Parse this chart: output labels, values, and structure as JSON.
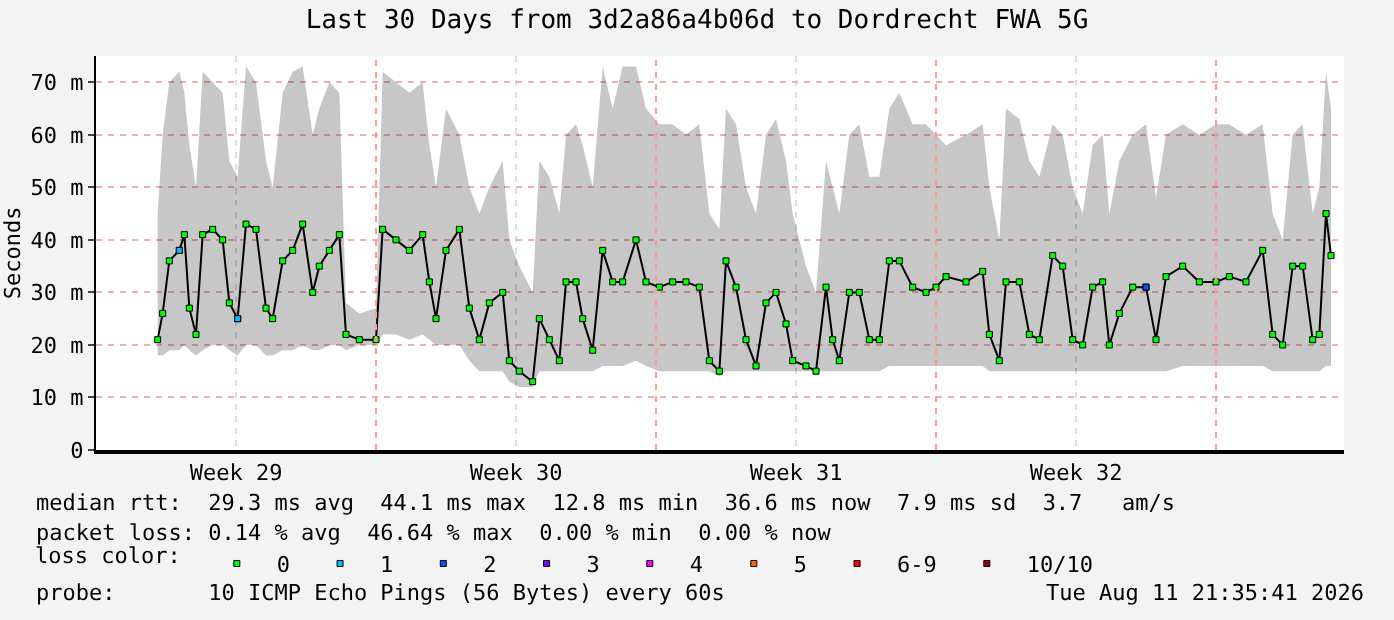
{
  "chart_data": {
    "type": "line",
    "title": "Last 30 Days from 3d2a86a4b06d to Dordrecht FWA 5G",
    "ylabel": "Seconds",
    "x": [
      "2026-07-13T13:00",
      "2026-07-13T16:00",
      "2026-07-13T20:00",
      "2026-07-14T02:00",
      "2026-07-14T05:00",
      "2026-07-14T08:00",
      "2026-07-14T12:00",
      "2026-07-14T16:00",
      "2026-07-14T22:00",
      "2026-07-15T04:00",
      "2026-07-15T08:00",
      "2026-07-15T13:00",
      "2026-07-15T18:00",
      "2026-07-16T00:00",
      "2026-07-16T06:00",
      "2026-07-16T10:00",
      "2026-07-16T16:00",
      "2026-07-16T22:00",
      "2026-07-17T04:00",
      "2026-07-17T10:00",
      "2026-07-17T14:00",
      "2026-07-17T20:00",
      "2026-07-18T02:00",
      "2026-07-18T06:00",
      "2026-07-18T14:00",
      "2026-07-19T00:00",
      "2026-07-19T04:00",
      "2026-07-19T12:00",
      "2026-07-19T20:00",
      "2026-07-20T04:00",
      "2026-07-20T08:00",
      "2026-07-20T12:00",
      "2026-07-20T18:00",
      "2026-07-21T02:00",
      "2026-07-21T08:00",
      "2026-07-21T14:00",
      "2026-07-21T20:00",
      "2026-07-22T04:00",
      "2026-07-22T08:00",
      "2026-07-22T14:00",
      "2026-07-22T22:00",
      "2026-07-23T02:00",
      "2026-07-23T08:00",
      "2026-07-23T14:00",
      "2026-07-23T18:00",
      "2026-07-24T00:00",
      "2026-07-24T04:00",
      "2026-07-24T10:00",
      "2026-07-24T16:00",
      "2026-07-24T22:00",
      "2026-07-25T04:00",
      "2026-07-25T12:00",
      "2026-07-25T18:00",
      "2026-07-26T02:00",
      "2026-07-26T10:00",
      "2026-07-26T18:00",
      "2026-07-27T02:00",
      "2026-07-27T08:00",
      "2026-07-27T14:00",
      "2026-07-27T18:00",
      "2026-07-28T00:00",
      "2026-07-28T06:00",
      "2026-07-28T12:00",
      "2026-07-28T18:00",
      "2026-07-29T00:00",
      "2026-07-29T06:00",
      "2026-07-29T10:00",
      "2026-07-29T18:00",
      "2026-07-30T00:00",
      "2026-07-30T06:00",
      "2026-07-30T10:00",
      "2026-07-30T14:00",
      "2026-07-30T20:00",
      "2026-07-31T02:00",
      "2026-07-31T08:00",
      "2026-07-31T14:00",
      "2026-07-31T20:00",
      "2026-08-01T02:00",
      "2026-08-01T10:00",
      "2026-08-01T18:00",
      "2026-08-02T00:00",
      "2026-08-02T06:00",
      "2026-08-02T18:00",
      "2026-08-03T04:00",
      "2026-08-03T08:00",
      "2026-08-03T14:00",
      "2026-08-03T18:00",
      "2026-08-04T02:00",
      "2026-08-04T08:00",
      "2026-08-04T14:00",
      "2026-08-04T22:00",
      "2026-08-05T04:00",
      "2026-08-05T10:00",
      "2026-08-05T16:00",
      "2026-08-05T22:00",
      "2026-08-06T04:00",
      "2026-08-06T08:00",
      "2026-08-06T14:00",
      "2026-08-06T22:00",
      "2026-08-07T06:00",
      "2026-08-07T12:00",
      "2026-08-07T18:00",
      "2026-08-08T04:00",
      "2026-08-08T14:00",
      "2026-08-09T00:00",
      "2026-08-09T08:00",
      "2026-08-09T18:00",
      "2026-08-10T04:00",
      "2026-08-10T10:00",
      "2026-08-10T16:00",
      "2026-08-10T22:00",
      "2026-08-11T04:00",
      "2026-08-11T10:00",
      "2026-08-11T14:00",
      "2026-08-11T18:00",
      "2026-08-11T21:00"
    ],
    "series": [
      {
        "color": "#000000",
        "marker": "none",
        "values": [
          21,
          26,
          36,
          38,
          41,
          27,
          22,
          41,
          42,
          40,
          28,
          25,
          43,
          42,
          27,
          25,
          36,
          38,
          43,
          30,
          35,
          38,
          41,
          22,
          21,
          21,
          42,
          40,
          38,
          41,
          32,
          25,
          38,
          42,
          27,
          21,
          28,
          30,
          17,
          15,
          13,
          25,
          21,
          17,
          32,
          32,
          25,
          19,
          38,
          32,
          32,
          40,
          32,
          31,
          32,
          32,
          31,
          17,
          15,
          36,
          31,
          21,
          16,
          28,
          30,
          24,
          17,
          16,
          15,
          31,
          21,
          17,
          30,
          30,
          21,
          21,
          36,
          36,
          31,
          30,
          31,
          33,
          32,
          34,
          22,
          17,
          32,
          32,
          22,
          21,
          37,
          35,
          21,
          20,
          31,
          32,
          20,
          26,
          31,
          31,
          21,
          33,
          35,
          32,
          32,
          33,
          32,
          38,
          22,
          20,
          35,
          35,
          21,
          22,
          45,
          37
        ],
        "lower": [
          18,
          18,
          19,
          19,
          20,
          19,
          18,
          19,
          20,
          20,
          19,
          18,
          20,
          20,
          18,
          18,
          19,
          19,
          20,
          19,
          19,
          20,
          20,
          19,
          20,
          20,
          22,
          22,
          21,
          22,
          21,
          20,
          20,
          20,
          17,
          15,
          15,
          15,
          13,
          12,
          12,
          15,
          15,
          15,
          15,
          15,
          15,
          15,
          16,
          16,
          16,
          17,
          16,
          15,
          15,
          15,
          15,
          15,
          14,
          15,
          15,
          15,
          15,
          15,
          15,
          15,
          15,
          15,
          15,
          15,
          15,
          15,
          15,
          15,
          15,
          15,
          16,
          16,
          16,
          16,
          16,
          16,
          16,
          16,
          15,
          15,
          15,
          15,
          15,
          15,
          15,
          15,
          15,
          15,
          15,
          15,
          15,
          15,
          15,
          15,
          15,
          15,
          16,
          16,
          16,
          16,
          16,
          16,
          15,
          15,
          15,
          15,
          15,
          15,
          16,
          16
        ],
        "upper": [
          45,
          60,
          70,
          72,
          68,
          58,
          50,
          72,
          70,
          68,
          55,
          52,
          73,
          70,
          55,
          50,
          68,
          72,
          73,
          60,
          65,
          70,
          68,
          28,
          26,
          27,
          72,
          70,
          68,
          70,
          58,
          50,
          65,
          60,
          50,
          45,
          50,
          55,
          40,
          35,
          30,
          55,
          52,
          45,
          60,
          62,
          58,
          50,
          73,
          65,
          73,
          73,
          65,
          62,
          62,
          60,
          62,
          45,
          42,
          65,
          62,
          50,
          45,
          60,
          63,
          55,
          45,
          35,
          30,
          55,
          50,
          45,
          60,
          62,
          52,
          52,
          65,
          68,
          62,
          62,
          60,
          58,
          60,
          62,
          50,
          40,
          65,
          63,
          55,
          52,
          62,
          60,
          50,
          45,
          58,
          60,
          45,
          55,
          60,
          62,
          48,
          60,
          62,
          60,
          62,
          62,
          60,
          62,
          45,
          40,
          60,
          62,
          45,
          50,
          72,
          65
        ]
      },
      {
        "type": "scatter",
        "name": "0",
        "color": "#00ff00",
        "values": [
          21,
          26,
          36,
          38,
          41,
          27,
          22,
          41,
          42,
          40,
          28,
          25,
          43,
          42,
          27,
          25,
          36,
          38,
          43,
          30,
          35,
          38,
          41,
          22,
          21,
          21,
          42,
          40,
          38,
          41,
          32,
          25,
          38,
          42,
          27,
          21,
          28,
          30,
          17,
          15,
          13,
          25,
          21,
          17,
          32,
          32,
          25,
          19,
          38,
          32,
          32,
          40,
          32,
          31,
          32,
          32,
          31,
          17,
          15,
          36,
          31,
          21,
          16,
          28,
          30,
          24,
          17,
          16,
          15,
          31,
          21,
          17,
          30,
          30,
          21,
          21,
          36,
          36,
          31,
          30,
          31,
          33,
          32,
          34,
          22,
          17,
          32,
          32,
          22,
          21,
          37,
          35,
          21,
          20,
          31,
          32,
          20,
          26,
          31,
          31,
          21,
          33,
          35,
          32,
          32,
          33,
          32,
          38,
          22,
          20,
          35,
          35,
          21,
          22,
          45,
          37
        ]
      },
      {
        "type": "scatter",
        "name": "1",
        "color": "#00bbff",
        "values": [
          null,
          null,
          null,
          38,
          null,
          null,
          null,
          null,
          null,
          null,
          null,
          25,
          null,
          null,
          null,
          null,
          null,
          null,
          null,
          null,
          null,
          null,
          null,
          null,
          null,
          null,
          null,
          null,
          null,
          null,
          null,
          null,
          null,
          null,
          null,
          null,
          null,
          null,
          null,
          null,
          null,
          null,
          null,
          null,
          null,
          null,
          null,
          null,
          null,
          null,
          null,
          null,
          null,
          null,
          null,
          null,
          null,
          null,
          null,
          null,
          null,
          null,
          null,
          null,
          null,
          null,
          null,
          null,
          null,
          null,
          null,
          null,
          null,
          null,
          null,
          null,
          null,
          null,
          null,
          null,
          null,
          null,
          null,
          null,
          null,
          null,
          null,
          null,
          null,
          null,
          null,
          null,
          null,
          null,
          null,
          null,
          null,
          null,
          null,
          null,
          null,
          null,
          null,
          null,
          null,
          null,
          null,
          null,
          null,
          null,
          null,
          null,
          null,
          null,
          null,
          null
        ]
      },
      {
        "type": "scatter",
        "name": "2",
        "color": "#0055ff",
        "values": [
          null,
          null,
          null,
          null,
          null,
          null,
          null,
          null,
          null,
          null,
          null,
          null,
          null,
          null,
          null,
          null,
          null,
          null,
          null,
          null,
          null,
          null,
          null,
          null,
          null,
          null,
          null,
          null,
          null,
          null,
          null,
          null,
          null,
          null,
          null,
          null,
          null,
          null,
          null,
          null,
          null,
          null,
          null,
          null,
          null,
          null,
          null,
          null,
          null,
          null,
          null,
          null,
          null,
          null,
          null,
          null,
          null,
          null,
          null,
          null,
          null,
          null,
          null,
          null,
          null,
          null,
          null,
          null,
          null,
          null,
          null,
          null,
          null,
          null,
          null,
          null,
          null,
          null,
          null,
          null,
          null,
          null,
          null,
          null,
          null,
          null,
          null,
          null,
          null,
          null,
          null,
          null,
          null,
          null,
          null,
          null,
          null,
          null,
          null,
          31,
          null,
          null,
          null,
          null,
          null,
          null,
          null,
          null,
          null,
          null,
          null,
          null,
          null,
          null,
          null,
          null
        ]
      },
      {
        "type": "scatter",
        "name": "3",
        "color": "#8800ff",
        "values": [
          null,
          null,
          null,
          null,
          null,
          null,
          null,
          null,
          null,
          null,
          null,
          null,
          null,
          null,
          null,
          null,
          null,
          null,
          null,
          null,
          null,
          null,
          null,
          null,
          null,
          null,
          null,
          null,
          null,
          null,
          null,
          null,
          null,
          null,
          null,
          null,
          null,
          null,
          null,
          null,
          null,
          null,
          null,
          null,
          null,
          null,
          null,
          null,
          null,
          null,
          null,
          null,
          null,
          null,
          null,
          null,
          null,
          null,
          null,
          null,
          null,
          null,
          null,
          null,
          null,
          null,
          null,
          null,
          null,
          null,
          null,
          null,
          null,
          null,
          null,
          null,
          null,
          null,
          null,
          null,
          null,
          null,
          null,
          null,
          null,
          null,
          null,
          null,
          null,
          null,
          null,
          null,
          null,
          null,
          null,
          null,
          null,
          null,
          null,
          null,
          null,
          null,
          null,
          null,
          null,
          null,
          null,
          null,
          null,
          null,
          null,
          null,
          null,
          null,
          null,
          null
        ]
      },
      {
        "type": "scatter",
        "name": "4",
        "color": "#ff00ff",
        "values": [
          null,
          null,
          null,
          null,
          null,
          null,
          null,
          null,
          null,
          null,
          null,
          null,
          null,
          null,
          null,
          null,
          null,
          null,
          null,
          null,
          null,
          null,
          null,
          null,
          null,
          null,
          null,
          null,
          null,
          null,
          null,
          null,
          null,
          null,
          null,
          null,
          null,
          null,
          null,
          null,
          null,
          null,
          null,
          null,
          null,
          null,
          null,
          null,
          null,
          null,
          null,
          null,
          null,
          null,
          null,
          null,
          null,
          null,
          null,
          null,
          null,
          null,
          null,
          null,
          null,
          null,
          null,
          null,
          null,
          null,
          null,
          null,
          null,
          null,
          null,
          null,
          null,
          null,
          null,
          null,
          null,
          null,
          null,
          null,
          null,
          null,
          null,
          null,
          null,
          null,
          null,
          null,
          null,
          null,
          null,
          null,
          null,
          null,
          null,
          null,
          null,
          null,
          null,
          null,
          null,
          null,
          null,
          null,
          null,
          null,
          null,
          null,
          null,
          null,
          null,
          null
        ]
      },
      {
        "type": "scatter",
        "name": "5",
        "color": "#ff6600",
        "values": [
          null,
          null,
          null,
          null,
          null,
          null,
          null,
          null,
          null,
          null,
          null,
          null,
          null,
          null,
          null,
          null,
          null,
          null,
          null,
          null,
          null,
          null,
          null,
          null,
          null,
          null,
          null,
          null,
          null,
          null,
          null,
          null,
          null,
          null,
          null,
          null,
          null,
          null,
          null,
          null,
          null,
          null,
          null,
          null,
          null,
          null,
          null,
          null,
          null,
          null,
          null,
          null,
          null,
          null,
          null,
          null,
          null,
          null,
          null,
          null,
          null,
          null,
          null,
          null,
          null,
          null,
          null,
          null,
          null,
          null,
          null,
          null,
          null,
          null,
          null,
          null,
          null,
          null,
          null,
          null,
          null,
          null,
          null,
          null,
          null,
          null,
          null,
          null,
          null,
          null,
          null,
          null,
          null,
          null,
          null,
          null,
          null,
          null,
          null,
          null,
          null,
          null,
          null,
          null,
          null,
          null,
          null,
          null,
          null,
          null,
          null,
          null,
          null,
          null,
          null,
          null
        ]
      },
      {
        "type": "scatter",
        "name": "6-9",
        "color": "#ff0000",
        "values": [
          null,
          null,
          null,
          null,
          null,
          null,
          null,
          null,
          null,
          null,
          null,
          null,
          null,
          null,
          null,
          null,
          null,
          null,
          null,
          null,
          null,
          null,
          null,
          null,
          null,
          null,
          null,
          null,
          null,
          null,
          null,
          null,
          null,
          null,
          null,
          null,
          null,
          null,
          null,
          null,
          null,
          null,
          null,
          null,
          null,
          null,
          null,
          null,
          null,
          null,
          null,
          null,
          null,
          null,
          null,
          null,
          null,
          null,
          null,
          null,
          null,
          null,
          null,
          null,
          null,
          null,
          null,
          null,
          null,
          null,
          null,
          null,
          null,
          null,
          null,
          null,
          null,
          null,
          null,
          null,
          null,
          null,
          null,
          null,
          null,
          null,
          null,
          null,
          null,
          null,
          null,
          null,
          null,
          null,
          null,
          null,
          null,
          null,
          null,
          null,
          null,
          null,
          null,
          null,
          null,
          null,
          null,
          null,
          null,
          null,
          null,
          null,
          null,
          null,
          null,
          null
        ]
      },
      {
        "type": "scatter",
        "name": "10/10",
        "color": "#a00000",
        "values": [
          null,
          null,
          null,
          null,
          null,
          null,
          null,
          null,
          null,
          null,
          null,
          null,
          null,
          null,
          null,
          null,
          null,
          null,
          null,
          null,
          null,
          null,
          null,
          null,
          null,
          null,
          null,
          null,
          null,
          null,
          null,
          null,
          null,
          null,
          null,
          null,
          null,
          null,
          null,
          null,
          null,
          null,
          null,
          null,
          null,
          null,
          null,
          null,
          null,
          null,
          null,
          null,
          null,
          null,
          null,
          null,
          null,
          null,
          null,
          null,
          null,
          null,
          null,
          null,
          null,
          null,
          null,
          null,
          null,
          null,
          null,
          null,
          null,
          null,
          null,
          null,
          null,
          null,
          null,
          null,
          null,
          null,
          null,
          null,
          null,
          null,
          null,
          null,
          null,
          null,
          null,
          null,
          null,
          null,
          null,
          null,
          null,
          null,
          null,
          null,
          null,
          null,
          null,
          null,
          null,
          null,
          null,
          null,
          null,
          null,
          null,
          null,
          null,
          null,
          null,
          null
        ]
      }
    ],
    "legend_title": "loss color:",
    "legend": "bottom",
    "marker": "square",
    "line_style": "solid",
    "grid": true,
    "xlim": [
      "2026-07-12T00:00",
      "2026-08-12T04:48"
    ],
    "xticks": [
      {
        "value": "2026-07-15T12:00",
        "label": "Week 29"
      },
      {
        "value": "2026-07-22T12:00",
        "label": "Week 30"
      },
      {
        "value": "2026-07-29T12:00",
        "label": "Week 31"
      },
      {
        "value": "2026-08-05T12:00",
        "label": "Week 32"
      }
    ],
    "ylim": [
      0,
      75
    ],
    "yticks": [
      0,
      {
        "value": 10,
        "label": "10 m"
      },
      {
        "value": 20,
        "label": "20 m"
      },
      {
        "value": 30,
        "label": "30 m"
      },
      {
        "value": 40,
        "label": "40 m"
      },
      {
        "value": 50,
        "label": "50 m"
      },
      {
        "value": 60,
        "label": "60 m"
      },
      {
        "value": 70,
        "label": "70 m"
      }
    ],
    "ref_lines": [
      {
        "axis": "x",
        "value": "2026-07-19T00:00",
        "color": "#ff9999",
        "line_style": "dotted"
      },
      {
        "axis": "x",
        "value": "2026-07-26T00:00",
        "color": "#ff9999",
        "line_style": "dotted"
      },
      {
        "axis": "x",
        "value": "2026-08-02T00:00",
        "color": "#ff9999",
        "line_style": "dotted"
      },
      {
        "axis": "x",
        "value": "2026-08-09T00:00",
        "color": "#ff9999",
        "line_style": "dotted"
      }
    ],
    "annotations": [
      "median rtt:  29.3 ms avg  44.1 ms max  12.8 ms min  36.6 ms now  7.9 ms sd  3.7   am/s",
      "packet loss: 0.14 % avg  46.64 % max  0.00 % min  0.00 % now",
      "probe:       10 ICMP Echo Pings (56 Bytes) every 60s",
      "Tue Aug 11 21:35:41 2026"
    ]
  }
}
